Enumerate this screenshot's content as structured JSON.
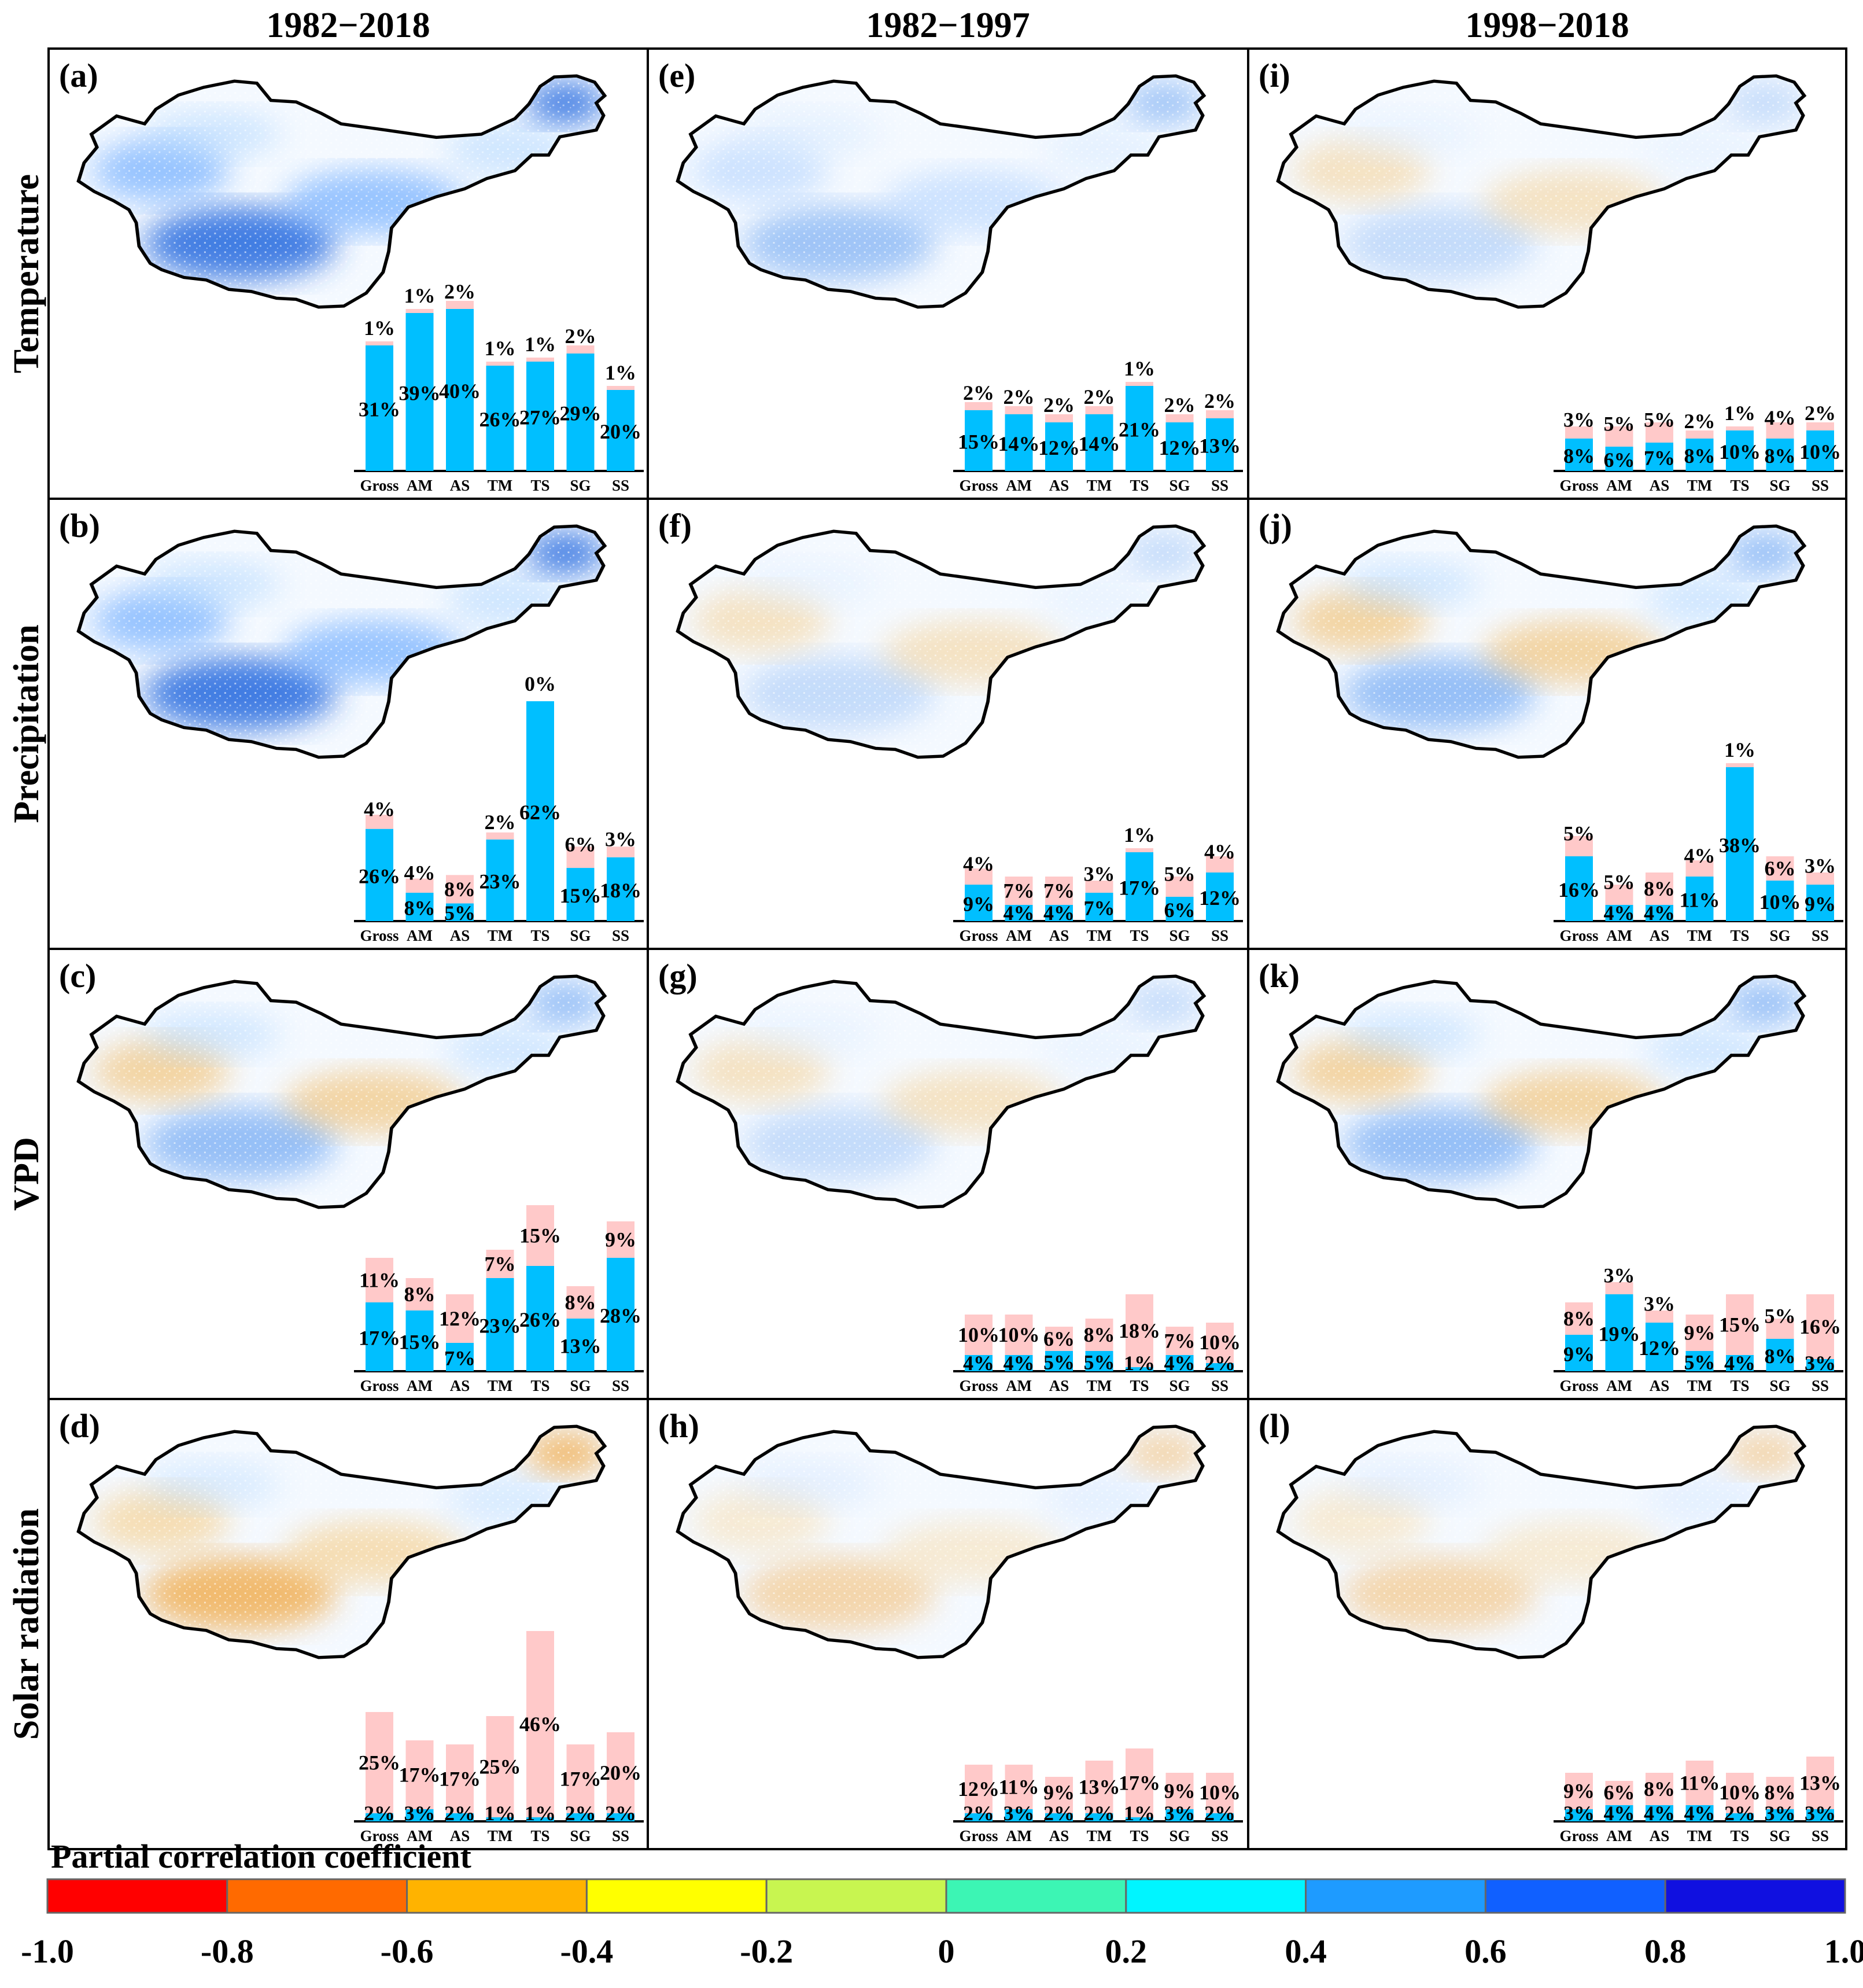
{
  "title_columns": [
    "1982−2018",
    "1982−1997",
    "1998−2018"
  ],
  "row_labels": [
    "Temperature",
    "Precipitation",
    "VPD",
    "Solar radiation"
  ],
  "categories": [
    "Gross",
    "AM",
    "AS",
    "TM",
    "TS",
    "SG",
    "SS"
  ],
  "colorbar": {
    "title": "Partial correlation coefficient",
    "ticks": [
      "-1.0",
      "-0.8",
      "-0.6",
      "-0.4",
      "-0.2",
      "0",
      "0.2",
      "0.4",
      "0.6",
      "0.8",
      "1.0"
    ],
    "colors": [
      "#ff0000",
      "#ff6a00",
      "#ffb300",
      "#ffff00",
      "#c8f550",
      "#3cf5b4",
      "#00f5ff",
      "#1e9bff",
      "#1060ff",
      "#1010e0"
    ]
  },
  "colors": {
    "positive": "#00bfff",
    "negative": "#ffc9c9",
    "axis": "#000000",
    "border": "#000000"
  },
  "chart_data": [
    {
      "panel_label": "(a)",
      "variable": "Temperature",
      "period": "1982−2018",
      "type": "bar",
      "map_tint": "blue",
      "positive": [
        31,
        39,
        40,
        26,
        27,
        29,
        20
      ],
      "negative": [
        1,
        1,
        2,
        1,
        1,
        2,
        1
      ],
      "positive_labels": [
        "31%",
        "39%",
        "40%",
        "26%",
        "27%",
        "29%",
        "20%"
      ],
      "negative_labels": [
        "1%",
        "1%",
        "2%",
        "1%",
        "1%",
        "2%",
        "1%"
      ]
    },
    {
      "panel_label": "(b)",
      "variable": "Precipitation",
      "period": "1982−2018",
      "type": "bar",
      "map_tint": "blue",
      "positive": [
        26,
        8,
        5,
        23,
        62,
        15,
        18
      ],
      "negative": [
        4,
        4,
        8,
        2,
        0,
        6,
        3
      ],
      "positive_labels": [
        "26%",
        "8%",
        "5%",
        "23%",
        "62%",
        "15%",
        "18%"
      ],
      "negative_labels": [
        "4%",
        "4%",
        "8%",
        "2%",
        "0%",
        "6%",
        "3%"
      ]
    },
    {
      "panel_label": "(c)",
      "variable": "VPD",
      "period": "1982−2018",
      "type": "bar",
      "map_tint": "mixed",
      "positive": [
        17,
        15,
        7,
        23,
        26,
        13,
        28
      ],
      "negative": [
        11,
        8,
        12,
        7,
        15,
        8,
        9
      ],
      "positive_labels": [
        "17%",
        "15%",
        "7%",
        "23%",
        "26%",
        "13%",
        "28%"
      ],
      "negative_labels": [
        "11%",
        "8%",
        "12%",
        "7%",
        "15%",
        "8%",
        "9%"
      ]
    },
    {
      "panel_label": "(d)",
      "variable": "Solar radiation",
      "period": "1982−2018",
      "type": "bar",
      "map_tint": "orange",
      "positive": [
        2,
        3,
        2,
        1,
        1,
        2,
        2
      ],
      "negative": [
        25,
        17,
        17,
        25,
        46,
        17,
        20
      ],
      "positive_labels": [
        "2%",
        "3%",
        "2%",
        "1%",
        "1%",
        "2%",
        "2%"
      ],
      "negative_labels": [
        "25%",
        "17%",
        "17%",
        "25%",
        "46%",
        "17%",
        "20%"
      ]
    },
    {
      "panel_label": "(e)",
      "variable": "Temperature",
      "period": "1982−1997",
      "type": "bar",
      "map_tint": "lightblue",
      "positive": [
        15,
        14,
        12,
        14,
        21,
        12,
        13
      ],
      "negative": [
        2,
        2,
        2,
        2,
        1,
        2,
        2
      ],
      "positive_labels": [
        "15%",
        "14%",
        "12%",
        "14%",
        "21%",
        "12%",
        "13%"
      ],
      "negative_labels": [
        "2%",
        "2%",
        "2%",
        "2%",
        "1%",
        "2%",
        "2%"
      ]
    },
    {
      "panel_label": "(f)",
      "variable": "Precipitation",
      "period": "1982−1997",
      "type": "bar",
      "map_tint": "mixedlight",
      "positive": [
        9,
        4,
        4,
        7,
        17,
        6,
        12
      ],
      "negative": [
        4,
        7,
        7,
        3,
        1,
        5,
        4
      ],
      "positive_labels": [
        "9%",
        "4%",
        "4%",
        "7%",
        "17%",
        "6%",
        "12%"
      ],
      "negative_labels": [
        "4%",
        "7%",
        "7%",
        "3%",
        "1%",
        "5%",
        "4%"
      ]
    },
    {
      "panel_label": "(g)",
      "variable": "VPD",
      "period": "1982−1997",
      "type": "bar",
      "map_tint": "mixedlight",
      "positive": [
        4,
        4,
        5,
        5,
        1,
        4,
        2
      ],
      "negative": [
        10,
        10,
        6,
        8,
        18,
        7,
        10
      ],
      "positive_labels": [
        "4%",
        "4%",
        "5%",
        "5%",
        "1%",
        "4%",
        "2%"
      ],
      "negative_labels": [
        "10%",
        "10%",
        "6%",
        "8%",
        "18%",
        "7%",
        "10%"
      ]
    },
    {
      "panel_label": "(h)",
      "variable": "Solar radiation",
      "period": "1982−1997",
      "type": "bar",
      "map_tint": "orangelight",
      "positive": [
        2,
        3,
        2,
        2,
        1,
        3,
        2
      ],
      "negative": [
        12,
        11,
        9,
        13,
        17,
        9,
        10
      ],
      "positive_labels": [
        "2%",
        "3%",
        "2%",
        "2%",
        "1%",
        "3%",
        "2%"
      ],
      "negative_labels": [
        "12%",
        "11%",
        "9%",
        "13%",
        "17%",
        "9%",
        "10%"
      ]
    },
    {
      "panel_label": "(i)",
      "variable": "Temperature",
      "period": "1998−2018",
      "type": "bar",
      "map_tint": "mixedlight",
      "positive": [
        8,
        6,
        7,
        8,
        10,
        8,
        10
      ],
      "negative": [
        3,
        5,
        5,
        2,
        1,
        4,
        2
      ],
      "positive_labels": [
        "8%",
        "6%",
        "7%",
        "8%",
        "10%",
        "8%",
        "10%"
      ],
      "negative_labels": [
        "3%",
        "5%",
        "5%",
        "2%",
        "1%",
        "4%",
        "2%"
      ]
    },
    {
      "panel_label": "(j)",
      "variable": "Precipitation",
      "period": "1998−2018",
      "type": "bar",
      "map_tint": "mixed",
      "positive": [
        16,
        4,
        4,
        11,
        38,
        10,
        9
      ],
      "negative": [
        5,
        5,
        8,
        4,
        1,
        6,
        3
      ],
      "positive_labels": [
        "16%",
        "4%",
        "4%",
        "11%",
        "38%",
        "10%",
        "9%"
      ],
      "negative_labels": [
        "5%",
        "5%",
        "8%",
        "4%",
        "1%",
        "6%",
        "3%"
      ]
    },
    {
      "panel_label": "(k)",
      "variable": "VPD",
      "period": "1998−2018",
      "type": "bar",
      "map_tint": "mixed",
      "positive": [
        9,
        19,
        12,
        5,
        4,
        8,
        3
      ],
      "negative": [
        8,
        3,
        3,
        9,
        15,
        5,
        16
      ],
      "positive_labels": [
        "9%",
        "19%",
        "12%",
        "5%",
        "4%",
        "8%",
        "3%"
      ],
      "negative_labels": [
        "8%",
        "3%",
        "3%",
        "9%",
        "15%",
        "5%",
        "16%"
      ]
    },
    {
      "panel_label": "(l)",
      "variable": "Solar radiation",
      "period": "1998−2018",
      "type": "bar",
      "map_tint": "orangelight",
      "positive": [
        3,
        4,
        4,
        4,
        2,
        3,
        3
      ],
      "negative": [
        9,
        6,
        8,
        11,
        10,
        8,
        13
      ],
      "positive_labels": [
        "3%",
        "4%",
        "4%",
        "4%",
        "2%",
        "3%",
        "3%"
      ],
      "negative_labels": [
        "9%",
        "6%",
        "8%",
        "11%",
        "10%",
        "8%",
        "13%"
      ]
    }
  ]
}
